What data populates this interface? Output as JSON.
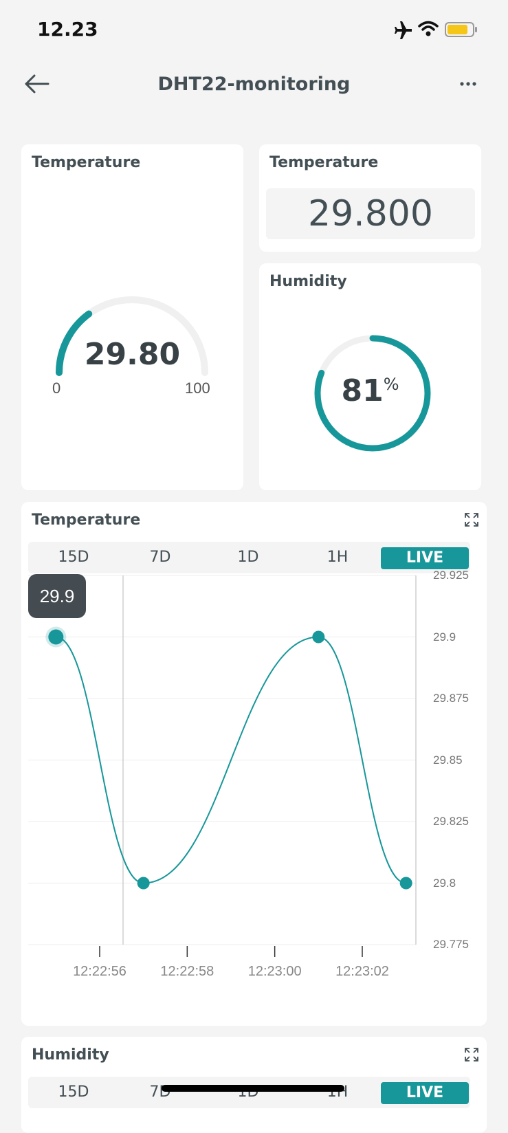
{
  "status_bar": {
    "time": "12.23"
  },
  "nav": {
    "title": "DHT22-monitoring",
    "back_icon": "arrow-left-icon",
    "menu_icon": "more-horizontal-icon"
  },
  "gauge_card": {
    "title": "Temperature",
    "value": "29.80",
    "min": "0",
    "max": "100",
    "fill_fraction": 0.298,
    "accent": "#17979a"
  },
  "value_card": {
    "title": "Temperature",
    "value": "29.800"
  },
  "humidity_card": {
    "title": "Humidity",
    "value": "81",
    "unit": "%",
    "fill_fraction": 0.81
  },
  "chart_card": {
    "title": "Temperature",
    "tabs": [
      "15D",
      "7D",
      "1D",
      "1H",
      "LIVE"
    ],
    "active_tab": "LIVE",
    "tooltip": "29.9",
    "expand_icon": "expand-icon"
  },
  "chart_data": {
    "type": "line",
    "x": [
      "12:22:55",
      "12:22:57",
      "12:23:01",
      "12:23:03"
    ],
    "y": [
      29.9,
      29.8,
      29.9,
      29.8
    ],
    "xticks": [
      "12:22:56",
      "12:22:58",
      "12:23:00",
      "12:23:02"
    ],
    "yticks": [
      "29.925",
      "29.9",
      "29.875",
      "29.85",
      "29.825",
      "29.8",
      "29.775"
    ],
    "ylim": [
      29.775,
      29.925
    ],
    "grid": true,
    "color": "#17979a"
  },
  "humidity_chart_card": {
    "title": "Humidity",
    "tabs": [
      "15D",
      "7D",
      "1D",
      "1H",
      "LIVE"
    ],
    "active_tab": "LIVE"
  }
}
